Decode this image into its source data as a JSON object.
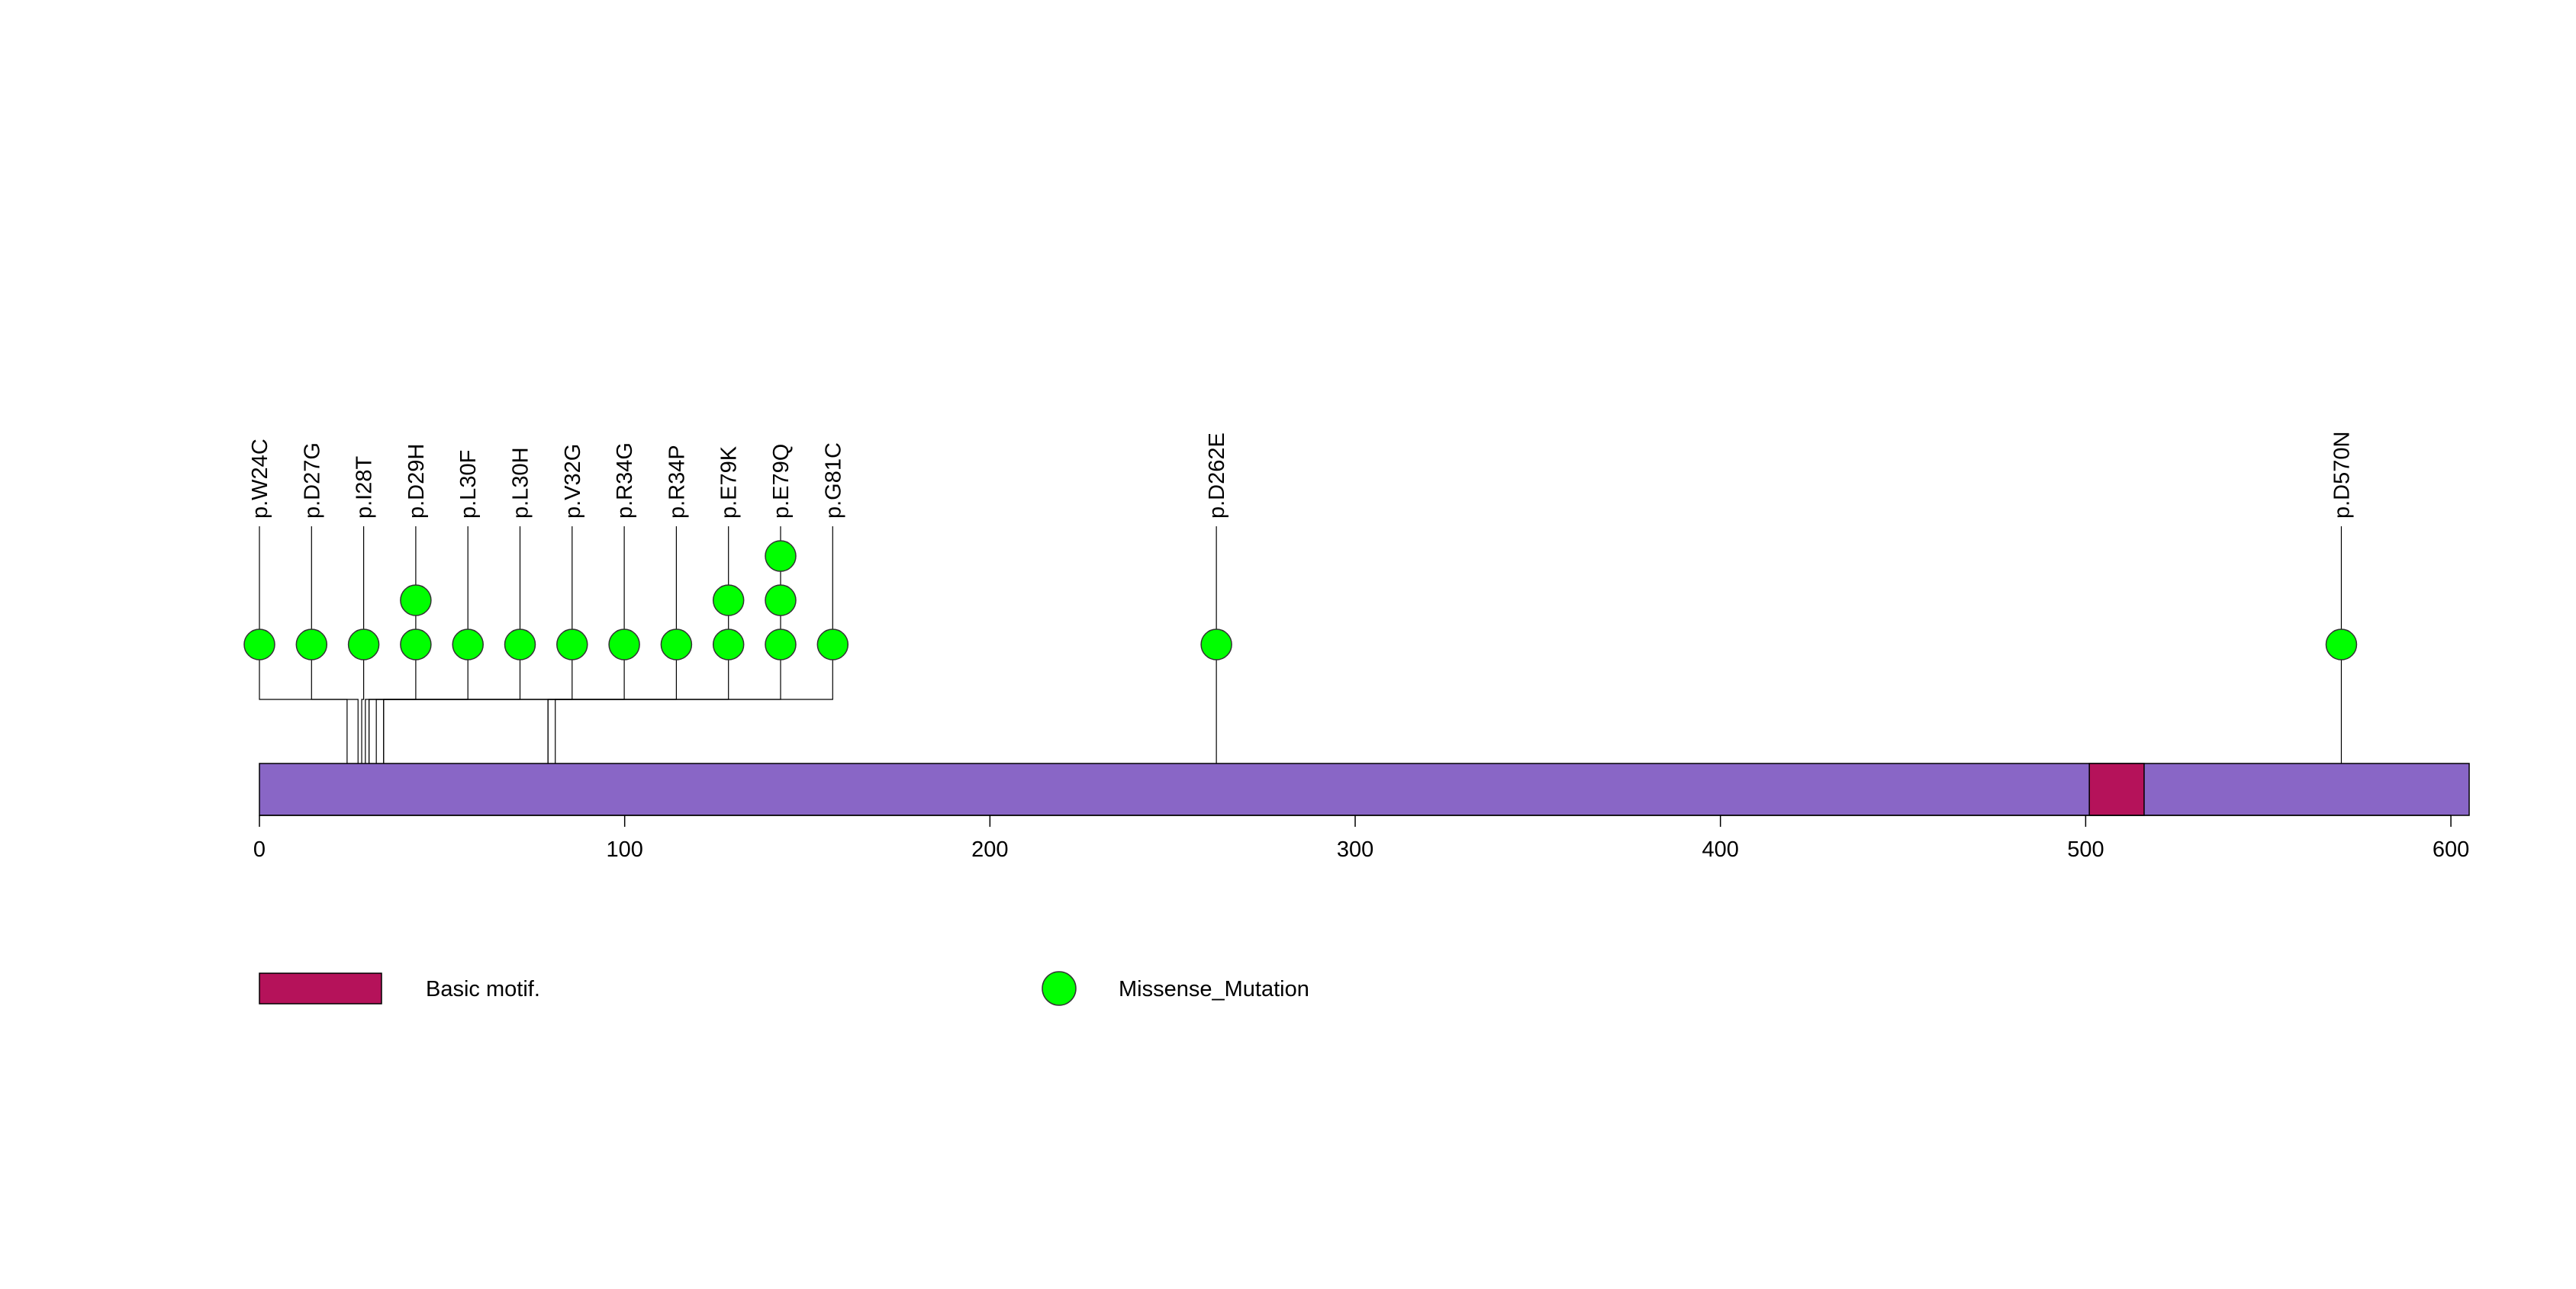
{
  "chart_data": {
    "type": "lollipop",
    "protein_length": 605,
    "axis": {
      "min": 0,
      "max": 605,
      "ticks": [
        0,
        100,
        200,
        300,
        400,
        500,
        600
      ]
    },
    "colors": {
      "protein": "#8966C6",
      "domain": "#B5125A",
      "mutation": "#00FF00",
      "line": "#000000"
    },
    "domains": [
      {
        "name": "Basic motif.",
        "start": 501,
        "end": 516
      }
    ],
    "mutations": [
      {
        "label": "p.W24C",
        "position": 24,
        "count": 1
      },
      {
        "label": "p.D27G",
        "position": 27,
        "count": 1
      },
      {
        "label": "p.I28T",
        "position": 28,
        "count": 1
      },
      {
        "label": "p.D29H",
        "position": 29,
        "count": 2
      },
      {
        "label": "p.L30F",
        "position": 30,
        "count": 1
      },
      {
        "label": "p.L30H",
        "position": 30,
        "count": 1
      },
      {
        "label": "p.V32G",
        "position": 32,
        "count": 1
      },
      {
        "label": "p.R34G",
        "position": 34,
        "count": 1
      },
      {
        "label": "p.R34P",
        "position": 34,
        "count": 1
      },
      {
        "label": "p.E79K",
        "position": 79,
        "count": 2
      },
      {
        "label": "p.E79Q",
        "position": 79,
        "count": 3
      },
      {
        "label": "p.G81C",
        "position": 81,
        "count": 1
      },
      {
        "label": "p.D262E",
        "position": 262,
        "count": 1
      },
      {
        "label": "p.D570N",
        "position": 570,
        "count": 1
      }
    ],
    "legend": [
      {
        "type": "domain",
        "label": "Basic motif."
      },
      {
        "type": "mutation",
        "label": "Missense_Mutation"
      }
    ]
  }
}
